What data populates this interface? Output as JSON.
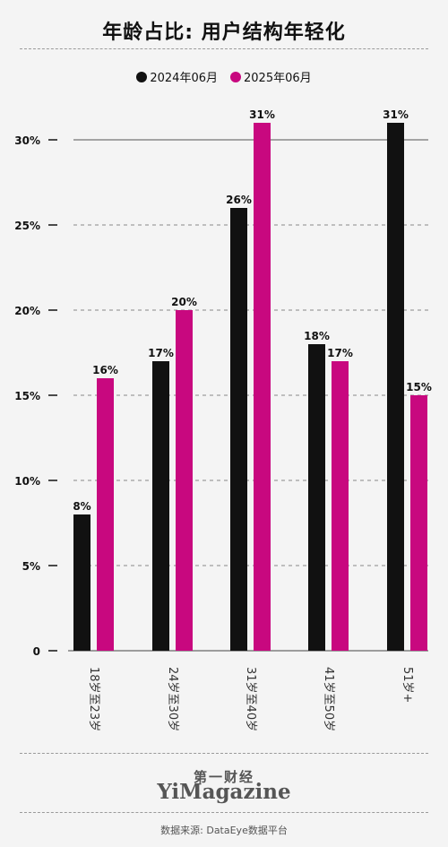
{
  "header": {
    "title": "年龄占比: 用户结构年轻化"
  },
  "legend": {
    "items": [
      {
        "label": "2024年06月",
        "color": "#111111"
      },
      {
        "label": "2025年06月",
        "color": "#c8087f"
      }
    ]
  },
  "chart_data": {
    "type": "bar",
    "title": "年龄占比: 用户结构年轻化",
    "categories": [
      "18岁至23岁",
      "24岁至30岁",
      "31岁至40岁",
      "41岁至50岁",
      "51岁+"
    ],
    "series": [
      {
        "name": "2024年06月",
        "color": "#111111",
        "values": [
          8,
          17,
          26,
          18,
          31
        ],
        "labels": [
          "8%",
          "17%",
          "26%",
          "18%",
          "31%"
        ]
      },
      {
        "name": "2025年06月",
        "color": "#c8087f",
        "values": [
          16,
          20,
          31,
          17,
          15
        ],
        "labels": [
          "16%",
          "20%",
          "31%",
          "17%",
          "15%"
        ]
      }
    ],
    "yticks": [
      {
        "value": 0,
        "label": "0"
      },
      {
        "value": 5,
        "label": "5%"
      },
      {
        "value": 10,
        "label": "10%"
      },
      {
        "value": 15,
        "label": "15%"
      },
      {
        "value": 20,
        "label": "20%"
      },
      {
        "value": 25,
        "label": "25%"
      },
      {
        "value": 30,
        "label": "30%"
      }
    ],
    "ylim": [
      0,
      30
    ],
    "grid": true,
    "legend_position": "top-center"
  },
  "footer": {
    "logo_cn": "第一财经",
    "logo_en": "YiMagazine",
    "source": "数据来源: DataEye数据平台"
  }
}
